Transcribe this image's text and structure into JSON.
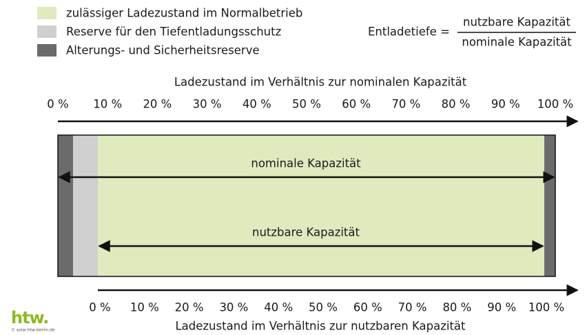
{
  "legend": [
    {
      "label": "zulässiger Ladezustand im Normalbetrieb",
      "color": "#dfeabf"
    },
    {
      "label": "Reserve für den Tiefentladungsschutz",
      "color": "#d0d0d0"
    },
    {
      "label": "Alterungs- und Sicherheitsreserve",
      "color": "#6b6b6b"
    }
  ],
  "formula": {
    "lhs": "Entladetiefe =",
    "numerator": "nutzbare Kapazität",
    "denominator": "nominale Kapazität"
  },
  "top_axis": {
    "title": "Ladezustand im Verhältnis zur nominalen Kapazität",
    "ticks": [
      "0 %",
      "10 %",
      "20 %",
      "30 %",
      "40 %",
      "50 %",
      "60 %",
      "70 %",
      "80 %",
      "90 %",
      "100 %"
    ]
  },
  "bottom_axis": {
    "title": "Ladezustand im Verhältnis zur nutzbaren Kapazität",
    "ticks": [
      "0 %",
      "10 %",
      "20 %",
      "30 %",
      "40 %",
      "50 %",
      "60 %",
      "70 %",
      "80 %",
      "90 %",
      "100 %"
    ]
  },
  "bar": {
    "nominal_label": "nominale Kapazität",
    "usable_label": "nutzbare Kapazität"
  },
  "logo": {
    "name": "htw.",
    "url": "© solar.htw-berlin.de"
  }
}
